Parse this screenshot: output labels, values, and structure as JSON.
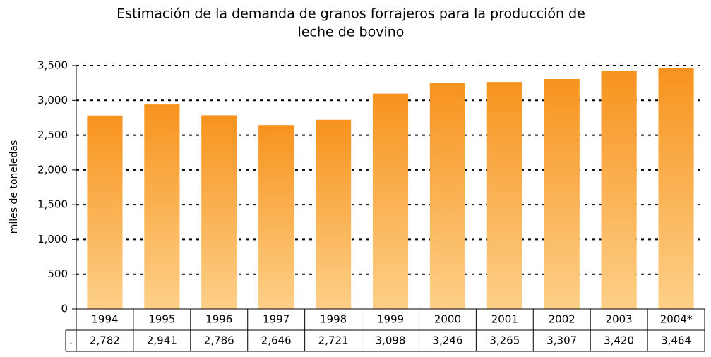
{
  "chart_data": {
    "type": "bar",
    "title": [
      "Estimación de la demanda de granos forrajeros para la producción de",
      "leche de bovino"
    ],
    "y_label": "miles de toneledas",
    "categories": [
      "1994",
      "1995",
      "1996",
      "1997",
      "1998",
      "1999",
      "2000",
      "2001",
      "2002",
      "2003",
      "2004*"
    ],
    "values": [
      2782,
      2941,
      2786,
      2646,
      2721,
      3098,
      3246,
      3265,
      3307,
      3420,
      3464
    ],
    "value_labels": [
      "2,782",
      "2,941",
      "2,786",
      "2,646",
      "2,721",
      "3,098",
      "3,246",
      "3,265",
      "3,307",
      "3,420",
      "3,464"
    ],
    "table_row_label": ".",
    "color": "#f7931e",
    "gradient_end": "#fdd088",
    "ylim": [
      0,
      3500
    ],
    "yticks": [
      0,
      500,
      {
        "value": 1000,
        "label": "1,000"
      },
      {
        "value": 1500,
        "label": "1,500"
      },
      {
        "value": 2000,
        "label": "2,000"
      },
      {
        "value": 2500,
        "label": "2,500"
      },
      {
        "value": 3000,
        "label": "3,000"
      },
      {
        "value": 3500,
        "label": "3,500"
      }
    ],
    "grid": true
  }
}
